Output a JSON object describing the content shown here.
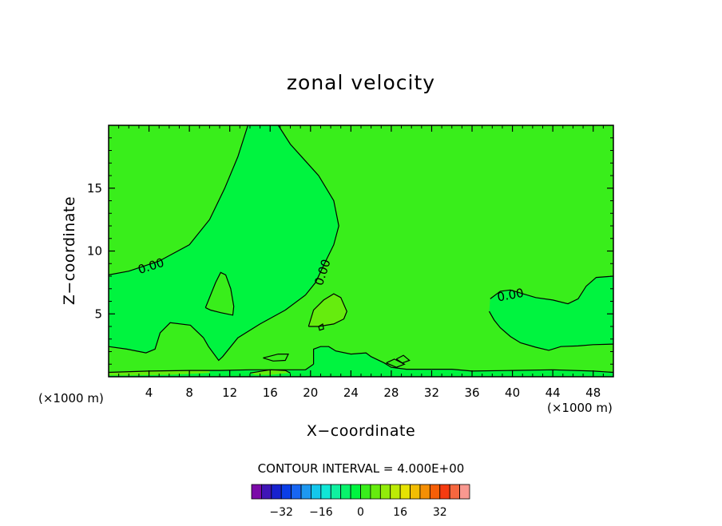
{
  "chart_data": {
    "type": "heatmap",
    "title": "zonal velocity",
    "xlabel": "X−coordinate",
    "ylabel": "Z−coordinate",
    "x_unit_left": "(×1000 m)",
    "x_unit_right": "(×1000 m)",
    "xlim": [
      0,
      50
    ],
    "ylim": [
      0,
      20
    ],
    "x_ticks": [
      4,
      8,
      12,
      16,
      20,
      24,
      28,
      32,
      36,
      40,
      44,
      48
    ],
    "y_ticks": [
      5,
      10,
      15
    ],
    "x_tick_labels": [
      "4",
      "8",
      "12",
      "16",
      "20",
      "24",
      "28",
      "32",
      "36",
      "40",
      "44",
      "48"
    ],
    "y_tick_labels": [
      "5",
      "10",
      "15"
    ],
    "contour_interval_text": "CONTOUR INTERVAL = 4.000E+00",
    "contour_labels": [
      {
        "text": "0.00",
        "x": 4.2,
        "y": 8.8,
        "angle": -18
      },
      {
        "text": "0.00",
        "x": 21.2,
        "y": 8.3,
        "angle": -72
      },
      {
        "text": "0.00",
        "x": 39.8,
        "y": 6.5,
        "angle": -10
      }
    ],
    "background_value": 2,
    "background_color": "#39ee1b",
    "regions": [
      {
        "value": -2,
        "color": "#00f43f",
        "shape": [
          [
            0,
            8.1
          ],
          [
            2,
            8.4
          ],
          [
            5,
            9.2
          ],
          [
            8,
            10.5
          ],
          [
            10,
            12.5
          ],
          [
            11.5,
            15
          ],
          [
            12.8,
            17.5
          ],
          [
            13.8,
            20
          ],
          [
            16.8,
            20
          ],
          [
            18,
            18.5
          ],
          [
            20.8,
            16
          ],
          [
            22.3,
            14
          ],
          [
            22.8,
            12
          ],
          [
            22.3,
            10.5
          ],
          [
            21.5,
            9.2
          ],
          [
            20.5,
            7.5
          ],
          [
            19.5,
            6.5
          ],
          [
            17.5,
            5.3
          ],
          [
            15,
            4.2
          ],
          [
            12.8,
            3.1
          ],
          [
            11.3,
            1.6
          ],
          [
            10.9,
            1.3
          ],
          [
            9.9,
            2.4
          ],
          [
            9.4,
            3.1
          ],
          [
            8.1,
            4.1
          ],
          [
            6.1,
            4.3
          ],
          [
            5.1,
            3.5
          ],
          [
            4.6,
            2.2
          ],
          [
            3.7,
            1.9
          ],
          [
            1.8,
            2.2
          ],
          [
            0,
            2.4
          ]
        ]
      },
      {
        "value": -2,
        "color": "#00f43f",
        "shape": [
          [
            0,
            0
          ],
          [
            50,
            0
          ],
          [
            50,
            0.35
          ],
          [
            48,
            0.45
          ],
          [
            44,
            0.55
          ],
          [
            40,
            0.5
          ],
          [
            36,
            0.45
          ],
          [
            34,
            0.6
          ],
          [
            32,
            0.6
          ],
          [
            29.5,
            0.6
          ],
          [
            28,
            0.75
          ],
          [
            27.3,
            1.1
          ],
          [
            26,
            1.6
          ],
          [
            25.5,
            1.9
          ],
          [
            24,
            1.8
          ],
          [
            22.5,
            2.05
          ],
          [
            21.8,
            2.4
          ],
          [
            21,
            2.4
          ],
          [
            20.3,
            2.2
          ],
          [
            20.3,
            1.0
          ],
          [
            19.5,
            0.55
          ],
          [
            17,
            0.55
          ],
          [
            14,
            0.55
          ],
          [
            11,
            0.5
          ],
          [
            8,
            0.5
          ],
          [
            4,
            0.45
          ],
          [
            0,
            0.35
          ]
        ]
      },
      {
        "value": -2,
        "color": "#00f43f",
        "shape": [
          [
            37.8,
            6.2
          ],
          [
            38.8,
            6.8
          ],
          [
            39.8,
            6.9
          ],
          [
            42.3,
            6.3
          ],
          [
            44,
            6.1
          ],
          [
            45.5,
            5.8
          ],
          [
            46.5,
            6.2
          ],
          [
            47.3,
            7.2
          ],
          [
            48.3,
            7.9
          ],
          [
            50,
            8
          ],
          [
            50,
            2.6
          ],
          [
            48,
            2.55
          ],
          [
            46.5,
            2.45
          ],
          [
            44.8,
            2.4
          ],
          [
            43.6,
            2.1
          ],
          [
            42.3,
            2.35
          ],
          [
            40.8,
            2.7
          ],
          [
            39.8,
            3.2
          ],
          [
            38.8,
            3.9
          ],
          [
            38.2,
            4.5
          ],
          [
            37.7,
            5.2
          ]
        ]
      },
      {
        "value": 2,
        "color": "#39ee1b",
        "shape": [
          [
            9.6,
            5.5
          ],
          [
            10.6,
            7.5
          ],
          [
            11.1,
            8.3
          ],
          [
            11.6,
            8.1
          ],
          [
            12.1,
            7.0
          ],
          [
            12.4,
            5.6
          ],
          [
            12.3,
            4.9
          ],
          [
            11.1,
            5.1
          ],
          [
            10.1,
            5.3
          ]
        ]
      },
      {
        "value": 2,
        "color": "#39ee1b",
        "shape": [
          [
            15.3,
            1.5
          ],
          [
            16.8,
            1.8
          ],
          [
            17.8,
            1.8
          ],
          [
            17.5,
            1.3
          ],
          [
            16.3,
            1.25
          ]
        ]
      },
      {
        "value": 6,
        "color": "#66ec0e",
        "shape": [
          [
            19.8,
            4.0
          ],
          [
            20.3,
            5.3
          ],
          [
            21.3,
            6.1
          ],
          [
            22.3,
            6.6
          ],
          [
            23,
            6.3
          ],
          [
            23.6,
            5.2
          ],
          [
            23.3,
            4.6
          ],
          [
            22.3,
            4.2
          ],
          [
            20.8,
            4.0
          ]
        ]
      },
      {
        "value": 6,
        "color": "#66ec0e",
        "shape": [
          [
            0,
            0.3
          ],
          [
            2,
            0.45
          ],
          [
            5,
            0.5
          ],
          [
            8,
            0.5
          ],
          [
            10,
            0.45
          ],
          [
            10,
            0.3
          ],
          [
            6,
            0.15
          ],
          [
            2,
            0.1
          ],
          [
            0,
            0.1
          ]
        ]
      },
      {
        "value": 6,
        "color": "#66ec0e",
        "shape": [
          [
            14,
            0.3
          ],
          [
            16,
            0.55
          ],
          [
            17.5,
            0.5
          ],
          [
            18,
            0.3
          ],
          [
            16,
            0.15
          ],
          [
            14.5,
            0.15
          ]
        ]
      }
    ],
    "contour_lines": [
      [
        [
          0,
          8.1
        ],
        [
          2,
          8.4
        ],
        [
          5,
          9.2
        ],
        [
          8,
          10.5
        ],
        [
          10,
          12.5
        ],
        [
          11.5,
          15
        ],
        [
          12.8,
          17.5
        ],
        [
          13.8,
          20
        ]
      ],
      [
        [
          16.8,
          20
        ],
        [
          18,
          18.5
        ],
        [
          20.8,
          16
        ],
        [
          22.3,
          14
        ],
        [
          22.8,
          12
        ],
        [
          22.3,
          10.5
        ],
        [
          21.5,
          9.2
        ],
        [
          20.5,
          7.5
        ],
        [
          19.5,
          6.5
        ],
        [
          17.5,
          5.3
        ],
        [
          15,
          4.2
        ],
        [
          12.8,
          3.1
        ],
        [
          11.3,
          1.6
        ],
        [
          10.9,
          1.3
        ],
        [
          9.9,
          2.4
        ],
        [
          9.4,
          3.1
        ],
        [
          8.1,
          4.1
        ],
        [
          6.1,
          4.3
        ],
        [
          5.1,
          3.5
        ],
        [
          4.6,
          2.2
        ],
        [
          3.7,
          1.9
        ],
        [
          1.8,
          2.2
        ],
        [
          0,
          2.4
        ]
      ],
      [
        [
          9.6,
          5.5
        ],
        [
          10.6,
          7.5
        ],
        [
          11.1,
          8.3
        ],
        [
          11.6,
          8.1
        ],
        [
          12.1,
          7.0
        ],
        [
          12.4,
          5.6
        ],
        [
          12.3,
          4.9
        ],
        [
          11.1,
          5.1
        ],
        [
          10.1,
          5.3
        ],
        [
          9.6,
          5.5
        ]
      ],
      [
        [
          15.3,
          1.5
        ],
        [
          16.8,
          1.8
        ],
        [
          17.8,
          1.8
        ],
        [
          17.5,
          1.3
        ],
        [
          16.3,
          1.25
        ],
        [
          15.3,
          1.5
        ]
      ],
      [
        [
          19.8,
          4.0
        ],
        [
          20.3,
          5.3
        ],
        [
          21.3,
          6.1
        ],
        [
          22.3,
          6.6
        ],
        [
          23,
          6.3
        ],
        [
          23.6,
          5.2
        ],
        [
          23.3,
          4.6
        ],
        [
          22.3,
          4.2
        ],
        [
          20.8,
          4.0
        ],
        [
          19.8,
          4.0
        ]
      ],
      [
        [
          20.8,
          4.0
        ],
        [
          21.2,
          4.2
        ],
        [
          21.3,
          3.8
        ],
        [
          20.9,
          3.7
        ],
        [
          20.8,
          4.0
        ]
      ],
      [
        [
          20.3,
          1.0
        ],
        [
          20.3,
          2.2
        ],
        [
          21,
          2.4
        ],
        [
          21.8,
          2.4
        ],
        [
          22.5,
          2.05
        ],
        [
          24,
          1.8
        ],
        [
          25.5,
          1.9
        ],
        [
          26,
          1.6
        ],
        [
          27.3,
          1.1
        ],
        [
          28,
          0.75
        ],
        [
          29.5,
          0.6
        ],
        [
          32,
          0.6
        ],
        [
          34,
          0.6
        ],
        [
          36,
          0.45
        ],
        [
          40,
          0.5
        ],
        [
          44,
          0.55
        ],
        [
          48,
          0.45
        ],
        [
          50,
          0.35
        ]
      ],
      [
        [
          27.5,
          1.1
        ],
        [
          28.3,
          1.4
        ],
        [
          29.3,
          1.0
        ],
        [
          28.5,
          0.75
        ],
        [
          27.5,
          1.1
        ]
      ],
      [
        [
          28.5,
          1.4
        ],
        [
          29.2,
          1.7
        ],
        [
          29.8,
          1.3
        ],
        [
          29.1,
          1.1
        ],
        [
          28.5,
          1.4
        ]
      ],
      [
        [
          37.8,
          6.2
        ],
        [
          38.8,
          6.8
        ],
        [
          39.8,
          6.9
        ],
        [
          42.3,
          6.3
        ],
        [
          44,
          6.1
        ],
        [
          45.5,
          5.8
        ],
        [
          46.5,
          6.2
        ],
        [
          47.3,
          7.2
        ],
        [
          48.3,
          7.9
        ],
        [
          50,
          8
        ]
      ],
      [
        [
          37.7,
          5.2
        ],
        [
          38.2,
          4.5
        ],
        [
          38.8,
          3.9
        ],
        [
          39.8,
          3.2
        ],
        [
          40.8,
          2.7
        ],
        [
          42.3,
          2.35
        ],
        [
          43.6,
          2.1
        ],
        [
          44.8,
          2.4
        ],
        [
          46.5,
          2.45
        ],
        [
          48,
          2.55
        ],
        [
          50,
          2.6
        ]
      ],
      [
        [
          0,
          0.35
        ],
        [
          4,
          0.45
        ],
        [
          8,
          0.5
        ],
        [
          11,
          0.5
        ],
        [
          14,
          0.55
        ],
        [
          17,
          0.55
        ],
        [
          19.5,
          0.55
        ],
        [
          20.3,
          1.0
        ]
      ],
      [
        [
          14,
          0.3
        ],
        [
          16,
          0.55
        ],
        [
          17.5,
          0.5
        ],
        [
          18,
          0.3
        ]
      ]
    ],
    "colorbar": {
      "colors": [
        "#7b0aa8",
        "#3f15b6",
        "#1822cf",
        "#0a3ee8",
        "#1766f3",
        "#1d98f0",
        "#14c7ec",
        "#11e7d6",
        "#0ff0a0",
        "#08f26b",
        "#00f43f",
        "#39ee1b",
        "#66ec0e",
        "#92ec0a",
        "#bceb06",
        "#e6e303",
        "#f2bd03",
        "#f58f04",
        "#f65f07",
        "#f53b10",
        "#f6673f",
        "#f99890"
      ],
      "tick_values": [
        -32,
        -16,
        0,
        16,
        32
      ],
      "tick_labels": [
        "−32",
        "−16",
        "0",
        "16",
        "32"
      ],
      "range": [
        -44,
        44
      ]
    }
  }
}
